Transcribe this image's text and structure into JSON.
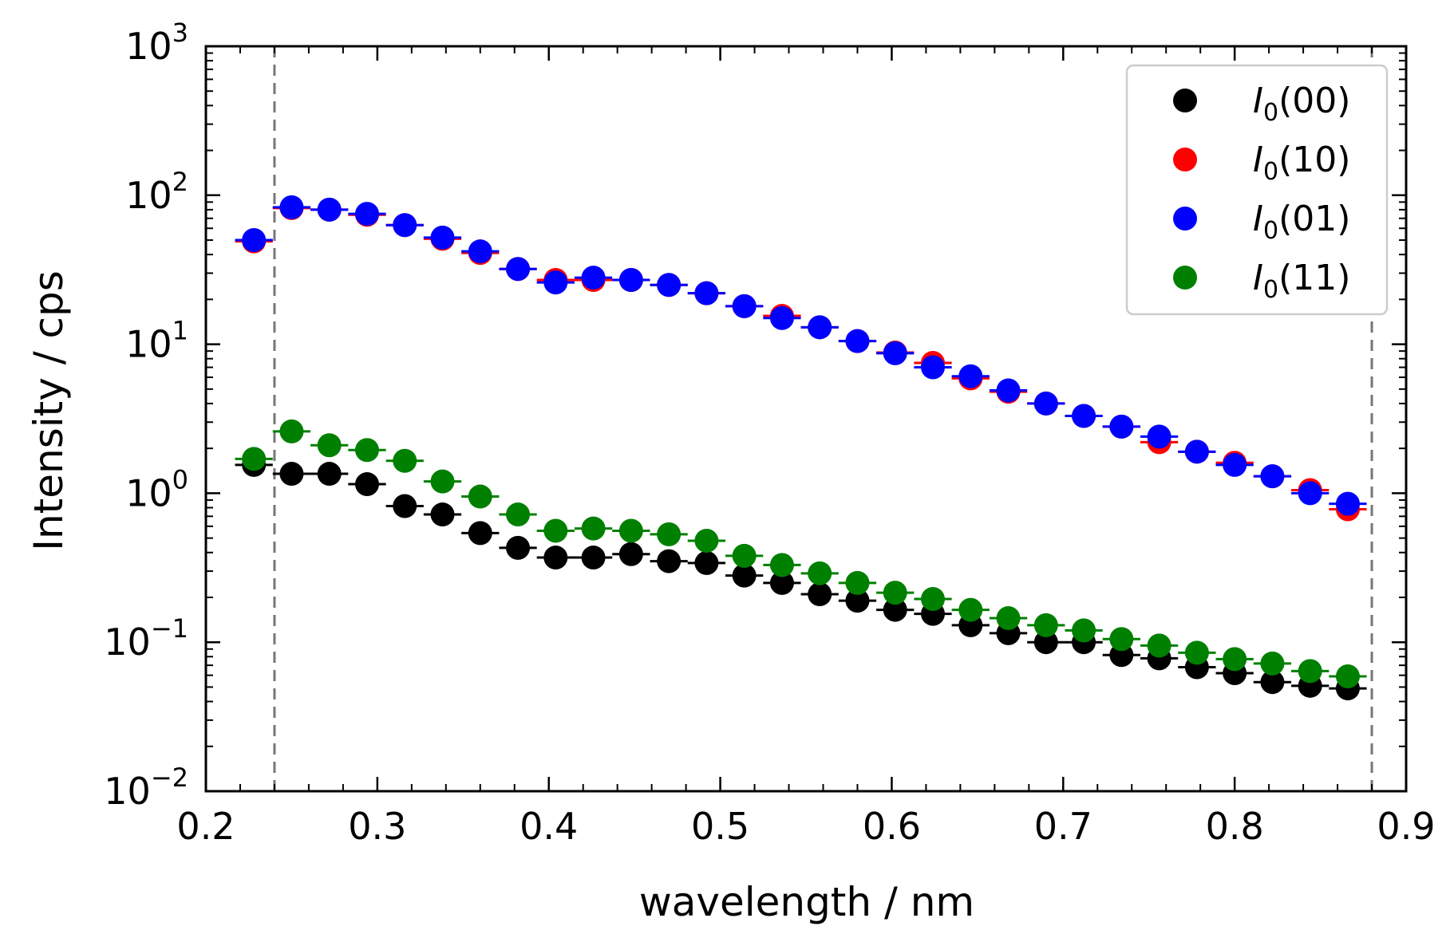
{
  "chart_data": {
    "type": "scatter",
    "title": "",
    "xlabel": "wavelength / nm",
    "ylabel": "Intensity / cps",
    "xlim": [
      0.2,
      0.9
    ],
    "ylim": [
      0.01,
      1000
    ],
    "yscale": "log",
    "x_ticks": [
      "0.2",
      "0.3",
      "0.4",
      "0.5",
      "0.6",
      "0.7",
      "0.8",
      "0.9"
    ],
    "y_ticks": [
      {
        "base": "10",
        "exp": "−2"
      },
      {
        "base": "10",
        "exp": "−1"
      },
      {
        "base": "10",
        "exp": "0"
      },
      {
        "base": "10",
        "exp": "1"
      },
      {
        "base": "10",
        "exp": "2"
      },
      {
        "base": "10",
        "exp": "3"
      }
    ],
    "grid": false,
    "legend_position": "top-right",
    "vlines": [
      0.24,
      0.88
    ],
    "x": [
      0.228,
      0.25,
      0.272,
      0.294,
      0.316,
      0.338,
      0.36,
      0.382,
      0.404,
      0.426,
      0.448,
      0.47,
      0.492,
      0.514,
      0.536,
      0.558,
      0.58,
      0.602,
      0.624,
      0.646,
      0.668,
      0.69,
      0.712,
      0.734,
      0.756,
      0.778,
      0.8,
      0.822,
      0.844,
      0.866
    ],
    "series": [
      {
        "name": "I0(00)",
        "label_main": "I",
        "label_sub": "0",
        "label_rest": "(00)",
        "color": "#000000",
        "values": [
          1.55,
          1.35,
          1.35,
          1.15,
          0.82,
          0.72,
          0.54,
          0.43,
          0.37,
          0.37,
          0.39,
          0.35,
          0.34,
          0.28,
          0.25,
          0.21,
          0.19,
          0.165,
          0.155,
          0.13,
          0.115,
          0.1,
          0.1,
          0.082,
          0.078,
          0.068,
          0.062,
          0.054,
          0.051,
          0.049
        ]
      },
      {
        "name": "I0(10)",
        "label_main": "I",
        "label_sub": "0",
        "label_rest": "(10)",
        "color": "#ff0000",
        "values": [
          49,
          82,
          80,
          74,
          63,
          51,
          41,
          32,
          27,
          27,
          27,
          25,
          22,
          18,
          15.5,
          13,
          10.5,
          8.8,
          7.5,
          5.9,
          4.8,
          4.0,
          3.3,
          2.8,
          2.2,
          1.9,
          1.6,
          1.3,
          1.05,
          0.78
        ]
      },
      {
        "name": "I0(01)",
        "label_main": "I",
        "label_sub": "0",
        "label_rest": "(01)",
        "color": "#0000ff",
        "values": [
          50,
          83,
          80,
          75,
          63,
          52,
          42,
          32,
          26,
          28,
          27,
          25,
          22,
          18,
          15,
          13,
          10.5,
          8.7,
          7.0,
          6.1,
          4.9,
          4.0,
          3.3,
          2.8,
          2.4,
          1.9,
          1.55,
          1.3,
          1.0,
          0.85
        ]
      },
      {
        "name": "I0(11)",
        "label_main": "I",
        "label_sub": "0",
        "label_rest": "(11)",
        "color": "#008000",
        "values": [
          1.7,
          2.6,
          2.1,
          1.95,
          1.65,
          1.2,
          0.95,
          0.72,
          0.56,
          0.58,
          0.56,
          0.53,
          0.48,
          0.38,
          0.33,
          0.29,
          0.25,
          0.215,
          0.195,
          0.165,
          0.145,
          0.13,
          0.12,
          0.105,
          0.095,
          0.085,
          0.077,
          0.072,
          0.064,
          0.059
        ]
      }
    ]
  }
}
